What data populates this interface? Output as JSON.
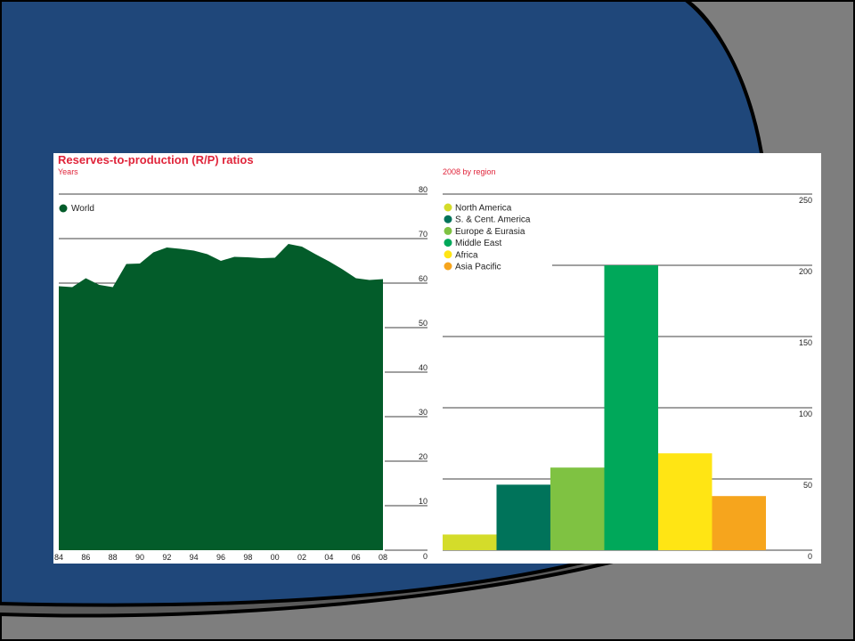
{
  "colors": {
    "slide_background": "#1f477a",
    "grey_background": "#5a5a5a",
    "swoosh": "#7e7e7e",
    "title": "#e0243a",
    "world_area": "#035c2a"
  },
  "chart_data": [
    {
      "type": "area",
      "title": "Reserves-to-production (R/P) ratios",
      "subtitle": "Years",
      "x": [
        1984,
        1985,
        1986,
        1987,
        1988,
        1989,
        1990,
        1991,
        1992,
        1993,
        1994,
        1995,
        1996,
        1997,
        1998,
        1999,
        2000,
        2001,
        2002,
        2003,
        2004,
        2005,
        2006,
        2007,
        2008
      ],
      "x_tick_labels": [
        "84",
        "86",
        "88",
        "90",
        "92",
        "94",
        "96",
        "98",
        "00",
        "02",
        "04",
        "06",
        "08"
      ],
      "series": [
        {
          "name": "World",
          "color": "#035c2a",
          "values": [
            59.3,
            59.1,
            61.1,
            59.6,
            59.1,
            64.3,
            64.4,
            66.9,
            68.0,
            67.7,
            67.3,
            66.5,
            65.0,
            65.9,
            65.8,
            65.6,
            65.7,
            68.8,
            68.2,
            66.5,
            64.9,
            63.1,
            61.1,
            60.7,
            60.9
          ]
        }
      ],
      "y_ticks": [
        0,
        10,
        20,
        30,
        40,
        50,
        60,
        70,
        80
      ],
      "ylim": [
        0,
        80
      ],
      "legend_position": "top-left",
      "grid": "horizontal"
    },
    {
      "type": "bar",
      "subtitle": "2008 by region",
      "categories": [
        "North America",
        "S. & Cent. America",
        "Europe & Eurasia",
        "Middle East",
        "Africa",
        "Asia Pacific"
      ],
      "values": [
        11,
        46,
        58,
        200,
        68,
        38
      ],
      "colors": [
        "#d4dc2a",
        "#00735a",
        "#7fc242",
        "#00a85a",
        "#ffe514",
        "#f6a51d"
      ],
      "y_ticks": [
        0,
        50,
        100,
        150,
        200,
        250
      ],
      "ylim": [
        0,
        250
      ],
      "legend_position": "top-left",
      "grid": "horizontal"
    }
  ]
}
